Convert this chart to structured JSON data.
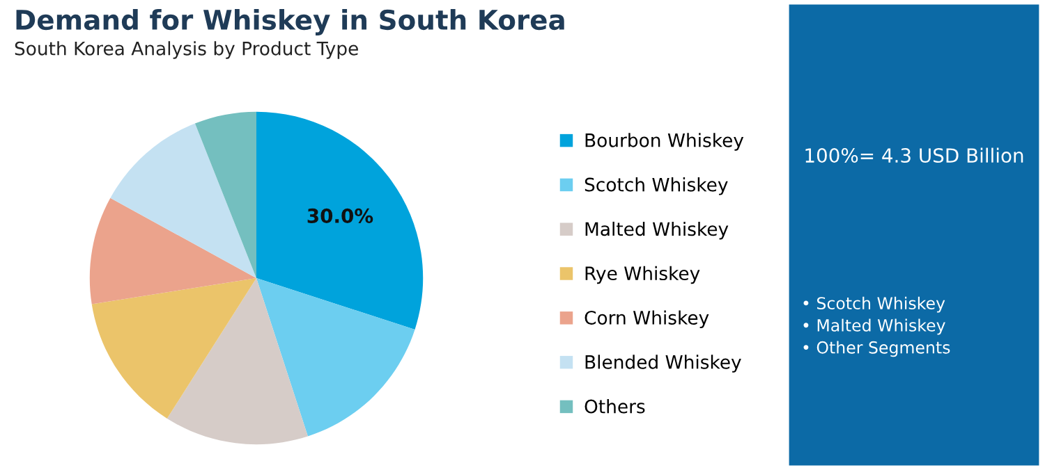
{
  "chart_data": {
    "type": "pie",
    "title": "Demand for Whiskey in South Korea",
    "subtitle": "South Korea Analysis by Product Type",
    "categories": [
      "Bourbon Whiskey",
      "Scotch Whiskey",
      "Malted Whiskey",
      "Rye Whiskey",
      "Corn Whiskey",
      "Blended Whiskey",
      "Others"
    ],
    "values": [
      30,
      15,
      14,
      13.5,
      10.5,
      11,
      6
    ],
    "colors": [
      "#00a3dc",
      "#6ccef0",
      "#d6ccc8",
      "#ebc46a",
      "#eba38c",
      "#c4e1f2",
      "#74bfbf"
    ],
    "value_labels": [
      "30.0%",
      null,
      null,
      null,
      null,
      null,
      null
    ],
    "legend": "right",
    "annotations": [
      "100%= 4.3 USD Billion",
      "• Scotch Whiskey\n• Malted Whiskey\n• Other Segments"
    ]
  }
}
